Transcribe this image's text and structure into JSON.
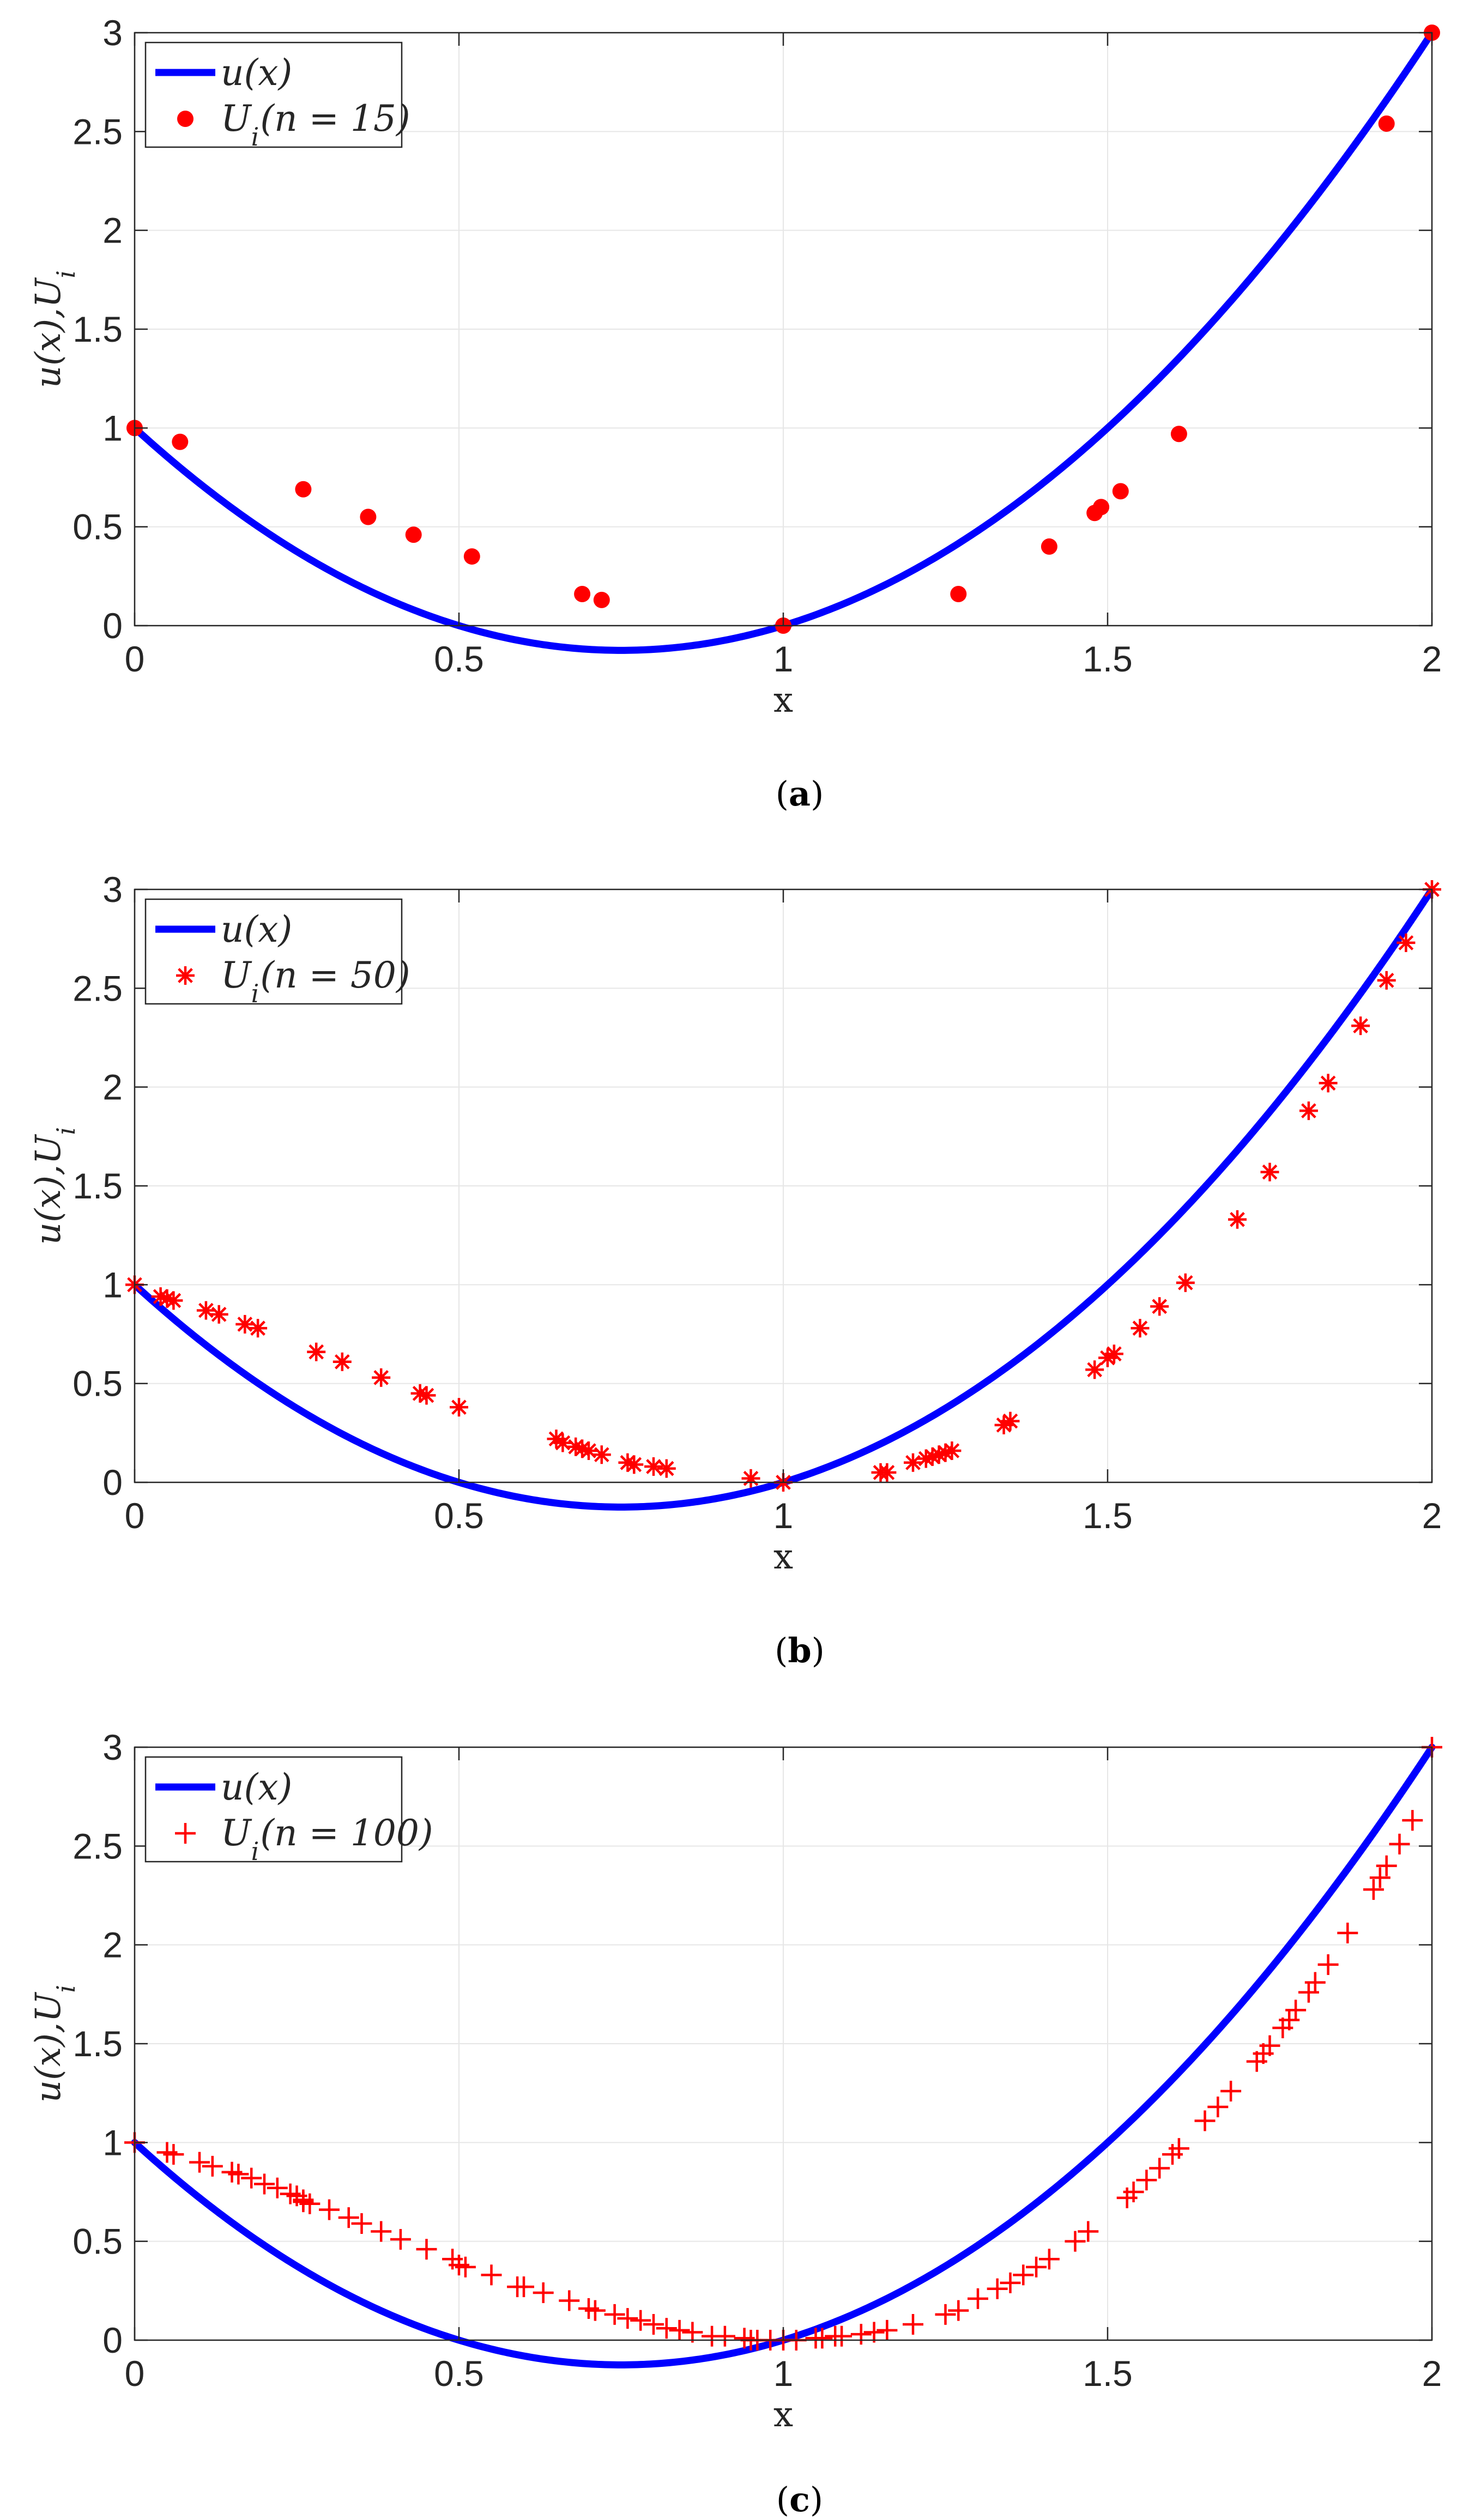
{
  "figure": {
    "captions": [
      "(a)",
      "(b)",
      "(c)"
    ]
  },
  "colors": {
    "curve": "#0000ff",
    "markers": "#ff0000",
    "axes": "#262626",
    "grid": "#e6e6e6"
  },
  "chart_data": [
    {
      "type": "line",
      "caption": "(a)",
      "xlabel": "x",
      "ylabel": "u(x),U_i",
      "xlim": [
        0,
        2
      ],
      "ylim": [
        0,
        3
      ],
      "xticks": [
        "0",
        "0.5",
        "1",
        "1.5",
        "2"
      ],
      "yticks": [
        "0",
        "0.5",
        "1",
        "1.5",
        "2",
        "2.5",
        "3"
      ],
      "grid": true,
      "legend_position": "top-left",
      "series": [
        {
          "name": "u(x)",
          "kind": "line",
          "function": "(x-1)^2 + x*(x-1)"
        },
        {
          "name": "U_i(n = 15)",
          "kind": "scatter",
          "marker": "dot",
          "x": [
            0,
            0.07,
            0.26,
            0.36,
            0.43,
            0.52,
            0.69,
            0.72,
            1.0,
            1.27,
            1.41,
            1.48,
            1.49,
            1.52,
            1.61,
            1.93,
            2.0
          ],
          "y": [
            1.0,
            0.93,
            0.69,
            0.55,
            0.46,
            0.35,
            0.16,
            0.13,
            0.0,
            0.16,
            0.4,
            0.57,
            0.6,
            0.68,
            0.97,
            2.54,
            3.0
          ]
        }
      ],
      "legend": [
        "u(x)",
        "U_i(n = 15)"
      ]
    },
    {
      "type": "line",
      "caption": "(b)",
      "xlabel": "x",
      "ylabel": "u(x),U_i",
      "xlim": [
        0,
        2
      ],
      "ylim": [
        0,
        3
      ],
      "xticks": [
        "0",
        "0.5",
        "1",
        "1.5",
        "2"
      ],
      "yticks": [
        "0",
        "0.5",
        "1",
        "1.5",
        "2",
        "2.5",
        "3"
      ],
      "grid": true,
      "legend_position": "top-left",
      "series": [
        {
          "name": "u(x)",
          "kind": "line",
          "function": "(x-1)^2 + x*(x-1)"
        },
        {
          "name": "U_i(n = 50)",
          "kind": "scatter",
          "marker": "asterisk",
          "x": [
            0,
            0.04,
            0.05,
            0.06,
            0.11,
            0.13,
            0.17,
            0.19,
            0.28,
            0.32,
            0.38,
            0.44,
            0.45,
            0.5,
            0.65,
            0.66,
            0.68,
            0.69,
            0.7,
            0.72,
            0.76,
            0.77,
            0.8,
            0.82,
            0.95,
            1.0,
            1.15,
            1.16,
            1.2,
            1.22,
            1.23,
            1.24,
            1.25,
            1.26,
            1.34,
            1.35,
            1.48,
            1.5,
            1.51,
            1.55,
            1.58,
            1.62,
            1.7,
            1.75,
            1.81,
            1.84,
            1.89,
            1.93,
            1.96,
            2.0
          ],
          "y": [
            1.0,
            0.94,
            0.93,
            0.92,
            0.87,
            0.85,
            0.8,
            0.78,
            0.66,
            0.61,
            0.53,
            0.45,
            0.44,
            0.38,
            0.22,
            0.2,
            0.18,
            0.17,
            0.16,
            0.14,
            0.1,
            0.09,
            0.08,
            0.07,
            0.02,
            0.0,
            0.05,
            0.05,
            0.1,
            0.12,
            0.13,
            0.14,
            0.15,
            0.16,
            0.29,
            0.31,
            0.57,
            0.63,
            0.65,
            0.78,
            0.89,
            1.01,
            1.33,
            1.57,
            1.88,
            2.02,
            2.31,
            2.54,
            2.73,
            3.0
          ]
        }
      ],
      "legend": [
        "u(x)",
        "U_i(n = 50)"
      ]
    },
    {
      "type": "line",
      "caption": "(c)",
      "xlabel": "x",
      "ylabel": "u(x),U_i",
      "xlim": [
        0,
        2
      ],
      "ylim": [
        0,
        3
      ],
      "xticks": [
        "0",
        "0.5",
        "1",
        "1.5",
        "2"
      ],
      "yticks": [
        "0",
        "0.5",
        "1",
        "1.5",
        "2",
        "2.5",
        "3"
      ],
      "grid": true,
      "legend_position": "top-left",
      "series": [
        {
          "name": "u(x)",
          "kind": "line",
          "function": "(x-1)^2 + x*(x-1)"
        },
        {
          "name": "U_i(n = 100)",
          "kind": "scatter",
          "marker": "plus",
          "x": [
            0,
            0.05,
            0.06,
            0.1,
            0.12,
            0.15,
            0.16,
            0.18,
            0.2,
            0.22,
            0.24,
            0.25,
            0.26,
            0.26,
            0.27,
            0.3,
            0.33,
            0.35,
            0.38,
            0.41,
            0.45,
            0.49,
            0.5,
            0.51,
            0.55,
            0.59,
            0.6,
            0.63,
            0.67,
            0.7,
            0.71,
            0.74,
            0.76,
            0.78,
            0.8,
            0.82,
            0.84,
            0.86,
            0.89,
            0.91,
            0.94,
            0.95,
            0.96,
            0.98,
            1.0,
            1.02,
            1.05,
            1.06,
            1.08,
            1.09,
            1.12,
            1.14,
            1.16,
            1.2,
            1.25,
            1.27,
            1.3,
            1.33,
            1.35,
            1.37,
            1.39,
            1.41,
            1.45,
            1.47,
            1.53,
            1.54,
            1.56,
            1.58,
            1.6,
            1.61,
            1.65,
            1.67,
            1.69,
            1.73,
            1.74,
            1.75,
            1.77,
            1.78,
            1.79,
            1.81,
            1.82,
            1.84,
            1.87,
            1.91,
            1.92,
            1.93,
            1.95,
            1.97,
            2.0
          ],
          "y": [
            1.0,
            0.95,
            0.94,
            0.9,
            0.88,
            0.85,
            0.84,
            0.82,
            0.79,
            0.77,
            0.74,
            0.73,
            0.71,
            0.7,
            0.69,
            0.66,
            0.62,
            0.59,
            0.55,
            0.51,
            0.46,
            0.41,
            0.38,
            0.37,
            0.33,
            0.27,
            0.27,
            0.24,
            0.2,
            0.16,
            0.15,
            0.13,
            0.11,
            0.1,
            0.08,
            0.06,
            0.05,
            0.04,
            0.02,
            0.02,
            0.01,
            0.0,
            0.0,
            0.0,
            0.0,
            0.0,
            0.01,
            0.01,
            0.02,
            0.02,
            0.03,
            0.04,
            0.05,
            0.08,
            0.13,
            0.15,
            0.21,
            0.26,
            0.29,
            0.33,
            0.37,
            0.41,
            0.5,
            0.55,
            0.72,
            0.75,
            0.81,
            0.87,
            0.94,
            0.97,
            1.11,
            1.18,
            1.26,
            1.41,
            1.45,
            1.49,
            1.58,
            1.62,
            1.67,
            1.76,
            1.81,
            1.9,
            2.06,
            2.28,
            2.34,
            2.4,
            2.51,
            2.63,
            3.0
          ]
        }
      ],
      "legend": [
        "u(x)",
        "U_i(n = 100)"
      ]
    }
  ]
}
